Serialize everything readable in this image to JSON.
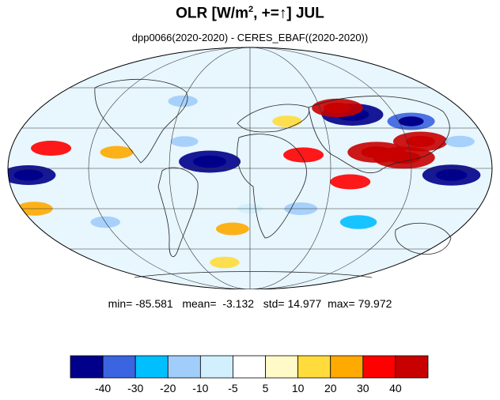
{
  "title": {
    "main": "OLR [W/m",
    "superscript": "2",
    "middle": ", +=",
    "arrow": "↑",
    "suffix": "] JUL"
  },
  "subtitle": "dpp0066(2020-2020) - CERES_EBAF((2020-2020))",
  "stats": {
    "min_label": "min=",
    "min": "-85.581",
    "mean_label": "mean=",
    "mean": "-3.132",
    "std_label": "std=",
    "std": "14.977",
    "max_label": "max=",
    "max": "79.972"
  },
  "colorbar": {
    "levels": [
      "-40",
      "-30",
      "-20",
      "-10",
      "-5",
      "5",
      "10",
      "20",
      "30",
      "40"
    ],
    "colors": [
      "#00008b",
      "#3a64e0",
      "#00bfff",
      "#a0cdfa",
      "#d2effe",
      "#ffffff",
      "#fffac8",
      "#ffdc3c",
      "#ffaa00",
      "#ff0000",
      "#c80000"
    ]
  },
  "map": {
    "projection": "mollweide",
    "outline_color": "#000000",
    "grid_color": "#000000",
    "field_anomalies": [
      {
        "lon": -30,
        "lat": 5,
        "value": -60
      },
      {
        "lon": 150,
        "lat": -5,
        "value": -55
      },
      {
        "lon": 85,
        "lat": 40,
        "value": -60
      },
      {
        "lon": 130,
        "lat": 35,
        "value": -40
      },
      {
        "lon": -165,
        "lat": -5,
        "value": -50
      },
      {
        "lon": -170,
        "lat": -30,
        "value": 25
      },
      {
        "lon": 95,
        "lat": 12,
        "value": 55
      },
      {
        "lon": 115,
        "lat": 8,
        "value": 60
      },
      {
        "lon": 130,
        "lat": 20,
        "value": 50
      },
      {
        "lon": 75,
        "lat": 45,
        "value": 45
      },
      {
        "lon": 75,
        "lat": -10,
        "value": 30
      },
      {
        "lon": 40,
        "lat": 10,
        "value": 30
      },
      {
        "lon": 30,
        "lat": 35,
        "value": 15
      },
      {
        "lon": -150,
        "lat": 15,
        "value": 30
      },
      {
        "lon": -100,
        "lat": 12,
        "value": 20
      },
      {
        "lon": -15,
        "lat": -45,
        "value": 20
      },
      {
        "lon": -30,
        "lat": -70,
        "value": 15
      },
      {
        "lon": 0,
        "lat": -30,
        "value": -8
      },
      {
        "lon": -50,
        "lat": 20,
        "value": -12
      },
      {
        "lon": 40,
        "lat": -30,
        "value": -20
      },
      {
        "lon": -120,
        "lat": -40,
        "value": -15
      },
      {
        "lon": 160,
        "lat": 20,
        "value": -15
      },
      {
        "lon": 90,
        "lat": -40,
        "value": -25
      },
      {
        "lon": -60,
        "lat": 50,
        "value": -15
      }
    ]
  }
}
